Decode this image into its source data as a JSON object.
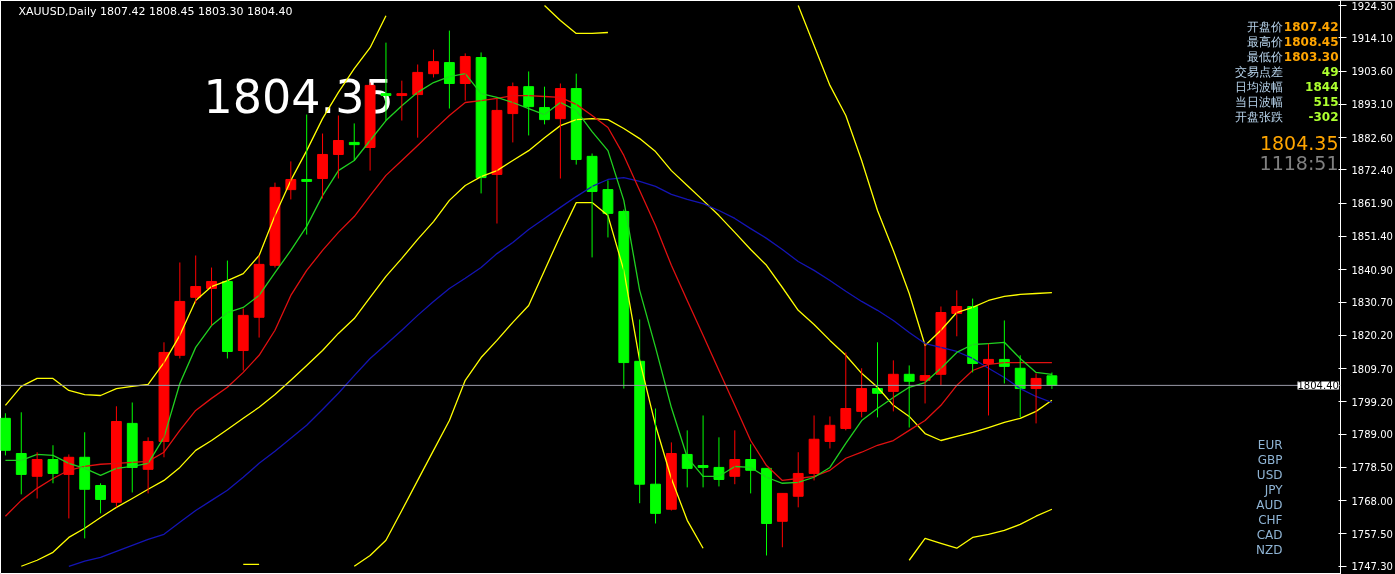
{
  "chart_data": {
    "type": "candlestick",
    "title": "XAUUSD,Daily  1807.42 1808.45 1803.30 1804.40",
    "annotations": [
      "1804.35",
      "开盘价",
      "1807.42",
      "最高价",
      "1808.45",
      "最低价",
      "1803.30",
      "交易点差",
      "49",
      "日均波幅",
      "1844",
      "当日波幅",
      "515",
      "开盘张跌",
      "-302",
      "1804.35",
      "1118:51",
      "EUR",
      "GBP",
      "USD",
      "JPY",
      "AUD",
      "CHF",
      "CAD",
      "NZD"
    ],
    "categories": [
      null,
      null,
      null,
      null,
      null,
      null,
      null,
      null,
      null,
      null,
      null,
      null,
      null,
      null,
      null,
      null,
      null,
      null,
      null,
      null,
      null,
      null,
      null,
      null,
      null,
      null,
      null,
      null,
      null,
      null,
      null,
      null,
      null,
      null,
      null,
      null,
      null,
      null,
      null,
      null,
      null,
      null,
      null,
      null,
      null,
      null,
      null,
      null,
      null,
      null,
      null,
      null,
      null,
      null,
      null,
      null,
      null,
      null,
      null,
      null,
      null,
      null,
      null,
      null,
      null,
      null,
      null
    ],
    "ohlc": [
      [
        1794.0,
        1795.6,
        1782.3,
        1783.9
      ],
      [
        1782.9,
        1795.9,
        1770.0,
        1776.3
      ],
      [
        1775.7,
        1783.3,
        1768.7,
        1781.0
      ],
      [
        1781.0,
        1785.5,
        1773.5,
        1776.6
      ],
      [
        1776.3,
        1782.6,
        1762.4,
        1781.7
      ],
      [
        1781.7,
        1789.6,
        1756.1,
        1771.6
      ],
      [
        1772.8,
        1773.5,
        1764.0,
        1768.4
      ],
      [
        1767.5,
        1797.8,
        1765.9,
        1793.0
      ],
      [
        1792.4,
        1799.0,
        1770.6,
        1778.5
      ],
      [
        1777.9,
        1788.0,
        1770.3,
        1786.7
      ],
      [
        1786.7,
        1818.0,
        1781.7,
        1814.8
      ],
      [
        1813.9,
        1843.2,
        1812.9,
        1830.9
      ],
      [
        1832.2,
        1845.4,
        1830.3,
        1835.6
      ],
      [
        1835.0,
        1841.6,
        1823.3,
        1837.2
      ],
      [
        1837.2,
        1843.8,
        1812.9,
        1815.1
      ],
      [
        1815.4,
        1828.7,
        1809.1,
        1826.5
      ],
      [
        1825.9,
        1845.4,
        1819.5,
        1842.6
      ],
      [
        1842.3,
        1868.4,
        1841.6,
        1866.9
      ],
      [
        1866.2,
        1875.1,
        1863.1,
        1869.4
      ],
      [
        1869.4,
        1889.9,
        1852.0,
        1868.8
      ],
      [
        1869.7,
        1883.9,
        1863.4,
        1877.3
      ],
      [
        1877.3,
        1889.6,
        1869.7,
        1881.7
      ],
      [
        1881.1,
        1887.1,
        1875.4,
        1880.4
      ],
      [
        1879.5,
        1900.0,
        1872.2,
        1899.1
      ],
      [
        1896.5,
        1912.6,
        1888.0,
        1895.9
      ],
      [
        1895.9,
        1900.6,
        1888.0,
        1896.5
      ],
      [
        1896.2,
        1905.7,
        1882.6,
        1903.2
      ],
      [
        1902.8,
        1910.4,
        1901.6,
        1906.6
      ],
      [
        1906.3,
        1916.4,
        1891.8,
        1899.7
      ],
      [
        1899.7,
        1909.2,
        1894.3,
        1908.2
      ],
      [
        1907.9,
        1909.5,
        1865.0,
        1870.0
      ],
      [
        1871.0,
        1895.0,
        1855.5,
        1891.2
      ],
      [
        1890.2,
        1900.0,
        1881.1,
        1898.7
      ],
      [
        1898.7,
        1903.5,
        1883.3,
        1892.4
      ],
      [
        1892.1,
        1898.7,
        1886.8,
        1888.3
      ],
      [
        1888.6,
        1899.7,
        1869.7,
        1898.1
      ],
      [
        1898.1,
        1902.8,
        1874.1,
        1875.7
      ],
      [
        1876.7,
        1877.6,
        1844.8,
        1865.6
      ],
      [
        1866.2,
        1869.1,
        1851.1,
        1858.7
      ],
      [
        1859.3,
        1859.9,
        1803.4,
        1811.6
      ],
      [
        1812.0,
        1825.2,
        1767.2,
        1773.2
      ],
      [
        1773.2,
        1797.1,
        1760.8,
        1764.0
      ],
      [
        1765.3,
        1786.4,
        1764.9,
        1782.9
      ],
      [
        1782.6,
        1790.2,
        1772.2,
        1778.2
      ],
      [
        1779.1,
        1794.9,
        1772.2,
        1778.5
      ],
      [
        1778.5,
        1788.0,
        1772.5,
        1774.7
      ],
      [
        1775.7,
        1790.2,
        1773.2,
        1781.0
      ],
      [
        1781.0,
        1785.8,
        1770.3,
        1777.6
      ],
      [
        1778.2,
        1778.2,
        1750.7,
        1760.8
      ],
      [
        1761.5,
        1770.3,
        1753.3,
        1770.3
      ],
      [
        1769.4,
        1783.3,
        1765.9,
        1776.6
      ],
      [
        1776.6,
        1794.9,
        1774.4,
        1787.4
      ],
      [
        1786.7,
        1794.6,
        1784.5,
        1791.8
      ],
      [
        1790.8,
        1814.8,
        1790.2,
        1797.1
      ],
      [
        1796.2,
        1809.8,
        1794.3,
        1803.4
      ],
      [
        1803.4,
        1818.0,
        1794.3,
        1801.9
      ],
      [
        1802.5,
        1812.3,
        1796.2,
        1807.9
      ],
      [
        1807.9,
        1810.7,
        1791.1,
        1805.7
      ],
      [
        1806.0,
        1817.6,
        1798.7,
        1807.5
      ],
      [
        1807.9,
        1829.3,
        1804.4,
        1827.4
      ],
      [
        1827.1,
        1834.4,
        1819.9,
        1829.3
      ],
      [
        1829.3,
        1831.8,
        1808.5,
        1811.3
      ],
      [
        1811.3,
        1817.6,
        1794.9,
        1812.6
      ],
      [
        1812.6,
        1824.9,
        1805.0,
        1810.4
      ],
      [
        1809.8,
        1813.9,
        1794.3,
        1803.4
      ],
      [
        1803.4,
        1808.2,
        1792.4,
        1806.6
      ],
      [
        1807.42,
        1808.45,
        1803.3,
        1804.4
      ]
    ],
    "colors": [
      "#00ff00",
      "#00ff00",
      "#ff0000",
      "#00ff00",
      "#ff0000",
      "#00ff00",
      "#00ff00",
      "#ff0000",
      "#00ff00",
      "#ff0000",
      "#ff0000",
      "#ff0000",
      "#ff0000",
      "#ff0000",
      "#00ff00",
      "#ff0000",
      "#ff0000",
      "#ff0000",
      "#ff0000",
      "#00ff00",
      "#ff0000",
      "#ff0000",
      "#00ff00",
      "#ff0000",
      "#00ff00",
      "#ff0000",
      "#ff0000",
      "#ff0000",
      "#00ff00",
      "#ff0000",
      "#00ff00",
      "#ff0000",
      "#ff0000",
      "#00ff00",
      "#00ff00",
      "#ff0000",
      "#00ff00",
      "#00ff00",
      "#00ff00",
      "#00ff00",
      "#00ff00",
      "#00ff00",
      "#ff0000",
      "#00ff00",
      "#00ff00",
      "#00ff00",
      "#ff0000",
      "#00ff00",
      "#00ff00",
      "#ff0000",
      "#ff0000",
      "#ff0000",
      "#ff0000",
      "#ff0000",
      "#ff0000",
      "#00ff00",
      "#ff0000",
      "#00ff00",
      "#ff0000",
      "#ff0000",
      "#ff0000",
      "#00ff00",
      "#ff0000",
      "#00ff00",
      "#00ff00",
      "#ff0000",
      "#00ff00"
    ],
    "series": [
      {
        "type": "line",
        "color": "#ffff00",
        "values": [
          1798.1,
          1804.1,
          1806.6,
          1806.6,
          1802.8,
          1801.5,
          1801.2,
          1803.4,
          1804.1,
          1804.7,
          1811.6,
          1820.2,
          1831.2,
          1835.6,
          1837.5,
          1839.7,
          1845.4,
          1858.0,
          1869.1,
          1878.5,
          1888.6,
          1896.9,
          1904.4,
          1911.0,
          1921.1,
          null,
          null,
          null,
          null,
          null,
          null,
          null,
          null,
          null,
          1924.3,
          1919.6,
          1915.5,
          1915.5,
          1915.8,
          null,
          null,
          null,
          null,
          null,
          null,
          null,
          null,
          null,
          null,
          null,
          1924.3,
          1911.7,
          1899.1,
          1889.6,
          1875.4,
          1859.6,
          1847.0,
          1833.4,
          1817.0,
          1821.8,
          1827.4,
          1829.0,
          1831.2,
          1832.5,
          1833.1,
          1833.4,
          1833.7
        ]
      },
      {
        "type": "line",
        "color": "#ffff00",
        "values": [
          null,
          1747.3,
          1749.2,
          1751.7,
          1756.4,
          1759.3,
          1762.7,
          1765.9,
          1768.7,
          1771.6,
          1774.4,
          1778.5,
          1783.9,
          1787.0,
          1790.5,
          1794.0,
          1797.5,
          1801.5,
          1806.0,
          1810.7,
          1815.4,
          1820.8,
          1825.5,
          1832.2,
          1838.8,
          1844.5,
          1850.5,
          1856.1,
          1862.8,
          1867.5,
          1870.3,
          1872.2,
          1875.4,
          1878.5,
          1882.6,
          1886.4,
          1888.3,
          1888.6,
          1888.3,
          1885.5,
          1882.3,
          1878.2,
          1872.2,
          1867.5,
          1862.8,
          1858.0,
          1852.7,
          1847.3,
          1842.3,
          1835.3,
          1828.1,
          1823.6,
          1818.6,
          1813.9,
          1808.2,
          1803.8,
          1798.1,
          1794.6,
          1789.2,
          1787.0,
          1788.3,
          1789.6,
          1791.1,
          1792.7,
          1794.0,
          1796.2,
          1799.7
        ]
      },
      {
        "type": "line",
        "color": "#ffff00",
        "values": [
          null,
          null,
          null,
          null,
          null,
          null,
          null,
          null,
          null,
          null,
          null,
          null,
          null,
          null,
          null,
          1747.9,
          1747.9,
          null,
          null,
          null,
          null,
          null,
          1747.3,
          1750.7,
          1755.5,
          1764.9,
          1774.4,
          1783.9,
          1793.3,
          1806.0,
          1813.2,
          1818.6,
          1824.3,
          1829.6,
          1840.7,
          1851.7,
          1862.1,
          1862.1,
          1858.0,
          1840.7,
          1812.3,
          1791.8,
          1775.0,
          1761.8,
          1753.0,
          null,
          null,
          null,
          null,
          null,
          null,
          null,
          null,
          null,
          null,
          null,
          null,
          1749.2,
          1756.1,
          1754.5,
          1753.0,
          1756.4,
          1757.4,
          1758.6,
          1760.5,
          1763.1,
          1765.3
        ]
      },
      {
        "type": "line",
        "color": "#1414b4",
        "values": [
          null,
          null,
          null,
          null,
          1747.3,
          1748.9,
          1750.1,
          1752.0,
          1753.9,
          1755.8,
          1757.4,
          1761.2,
          1764.9,
          1768.1,
          1771.3,
          1775.4,
          1779.8,
          1783.6,
          1787.7,
          1791.8,
          1796.8,
          1801.9,
          1807.5,
          1812.9,
          1817.3,
          1821.8,
          1826.5,
          1830.9,
          1835.0,
          1838.2,
          1841.6,
          1846.0,
          1849.5,
          1853.6,
          1857.1,
          1860.6,
          1864.0,
          1867.2,
          1869.4,
          1870.0,
          1868.8,
          1867.2,
          1864.7,
          1863.1,
          1861.8,
          1859.6,
          1857.1,
          1853.9,
          1850.8,
          1847.3,
          1843.5,
          1840.7,
          1837.5,
          1834.1,
          1830.9,
          1828.1,
          1824.9,
          1821.1,
          1817.6,
          1816.4,
          1815.1,
          1812.9,
          1809.8,
          1806.9,
          1803.4,
          1800.9,
          1799.0
        ]
      },
      {
        "type": "line",
        "color": "#e01010",
        "values": [
          1763.1,
          1768.1,
          1771.9,
          1775.0,
          1777.6,
          1778.8,
          1779.5,
          1779.8,
          1780.1,
          1780.4,
          1783.3,
          1790.2,
          1796.5,
          1800.3,
          1803.8,
          1808.5,
          1813.9,
          1821.8,
          1832.8,
          1840.7,
          1847.0,
          1852.7,
          1857.7,
          1864.3,
          1870.7,
          1875.4,
          1880.1,
          1884.9,
          1889.6,
          1893.7,
          1894.3,
          1895.0,
          1895.9,
          1895.9,
          1895.6,
          1895.3,
          1893.1,
          1889.6,
          1885.8,
          1877.0,
          1865.9,
          1854.9,
          1842.3,
          1831.2,
          1820.2,
          1809.1,
          1798.1,
          1787.0,
          1779.1,
          1774.4,
          1775.0,
          1775.7,
          1777.6,
          1781.4,
          1783.3,
          1785.5,
          1787.0,
          1790.2,
          1793.3,
          1798.1,
          1804.4,
          1809.1,
          1811.0,
          1811.6,
          1811.6,
          1811.6,
          1811.6
        ]
      },
      {
        "type": "line",
        "color": "#20d020",
        "values": [
          1780.7,
          1780.7,
          1782.6,
          1782.3,
          1779.8,
          1778.2,
          1776.0,
          1778.2,
          1778.8,
          1779.8,
          1788.0,
          1805.0,
          1816.4,
          1823.3,
          1827.4,
          1829.0,
          1832.8,
          1840.0,
          1847.0,
          1854.6,
          1864.3,
          1872.2,
          1875.4,
          1881.7,
          1888.0,
          1892.7,
          1896.9,
          1900.0,
          1901.9,
          1902.8,
          1896.5,
          1895.3,
          1893.7,
          1891.8,
          1889.9,
          1893.7,
          1891.2,
          1884.5,
          1878.5,
          1862.8,
          1834.4,
          1816.4,
          1797.4,
          1781.7,
          1775.7,
          1775.7,
          1778.8,
          1778.5,
          1775.4,
          1773.5,
          1773.8,
          1775.4,
          1778.5,
          1786.1,
          1793.3,
          1797.1,
          1800.6,
          1803.8,
          1805.3,
          1809.8,
          1814.8,
          1817.3,
          1817.6,
          1818.0,
          1812.9,
          1808.5,
          1807.9
        ]
      }
    ],
    "ylim": [
      1744.7,
      1925.9
    ],
    "yticks": [
      {
        "value": 1924.3,
        "label": "1924.30"
      },
      {
        "value": 1914.1,
        "label": "1914.10"
      },
      {
        "value": 1903.6,
        "label": "1903.60"
      },
      {
        "value": 1893.1,
        "label": "1893.10"
      },
      {
        "value": 1882.6,
        "label": "1882.60"
      },
      {
        "value": 1872.4,
        "label": "1872.40"
      },
      {
        "value": 1861.9,
        "label": "1861.90"
      },
      {
        "value": 1851.4,
        "label": "1851.40"
      },
      {
        "value": 1840.9,
        "label": "1840.90"
      },
      {
        "value": 1830.7,
        "label": "1830.70"
      },
      {
        "value": 1820.2,
        "label": "1820.20"
      },
      {
        "value": 1809.7,
        "label": "1809.70"
      },
      {
        "value": 1799.2,
        "label": "1799.20"
      },
      {
        "value": 1789.0,
        "label": "1789.00"
      },
      {
        "value": 1778.5,
        "label": "1778.50"
      },
      {
        "value": 1768.0,
        "label": "1768.00"
      },
      {
        "value": 1757.5,
        "label": "1757.50"
      },
      {
        "value": 1747.3,
        "label": "1747.30"
      }
    ],
    "ref_lines": [
      {
        "axis": "y",
        "value": 1804.4,
        "label": "1804.40",
        "color": "#9a9aa8"
      }
    ]
  }
}
